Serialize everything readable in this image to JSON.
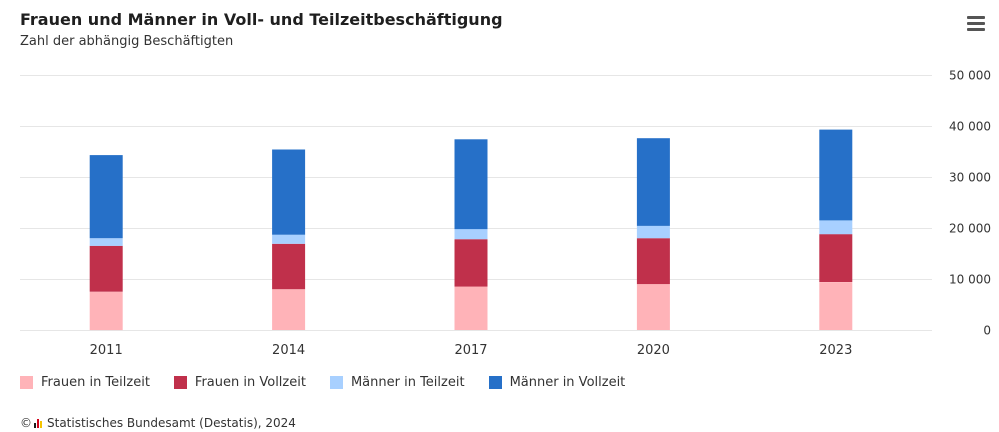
{
  "header": {
    "title": "Frauen und Männer in Voll- und Teilzeitbeschäftigung",
    "subtitle": "Zahl der abhängig Beschäftigten",
    "menu_icon": "hamburger-menu-icon"
  },
  "chart_data": {
    "type": "bar",
    "stacked": true,
    "title": "Frauen und Männer in Voll- und Teilzeitbeschäftigung",
    "subtitle": "Zahl der abhängig Beschäftigten",
    "categories": [
      "2011",
      "2014",
      "2017",
      "2020",
      "2023"
    ],
    "series": [
      {
        "name": "Frauen in Teilzeit",
        "color": "#ffb3b8",
        "values": [
          7500,
          8000,
          8500,
          9000,
          9400
        ]
      },
      {
        "name": "Frauen in Vollzeit",
        "color": "#c0304b",
        "values": [
          9000,
          8900,
          9300,
          9000,
          9400
        ]
      },
      {
        "name": "Männer in Teilzeit",
        "color": "#a8d0ff",
        "values": [
          1500,
          1800,
          2000,
          2400,
          2700
        ]
      },
      {
        "name": "Männer in Vollzeit",
        "color": "#2670c8",
        "values": [
          16300,
          16700,
          17600,
          17200,
          17800
        ]
      }
    ],
    "yaxis": {
      "min": 0,
      "max": 50000,
      "position": "right",
      "ticks": [
        0,
        10000,
        20000,
        30000,
        40000,
        50000
      ],
      "tick_labels": [
        "0",
        "10 000",
        "20 000",
        "30 000",
        "40 000",
        "50 000"
      ]
    },
    "grid": true,
    "legend_position": "bottom-left"
  },
  "footer": {
    "copyright_symbol": "©",
    "source": "Statistisches Bundesamt (Destatis), 2024",
    "logo_colors": [
      "#1a1a1a",
      "#d0021b",
      "#f5c400"
    ]
  }
}
